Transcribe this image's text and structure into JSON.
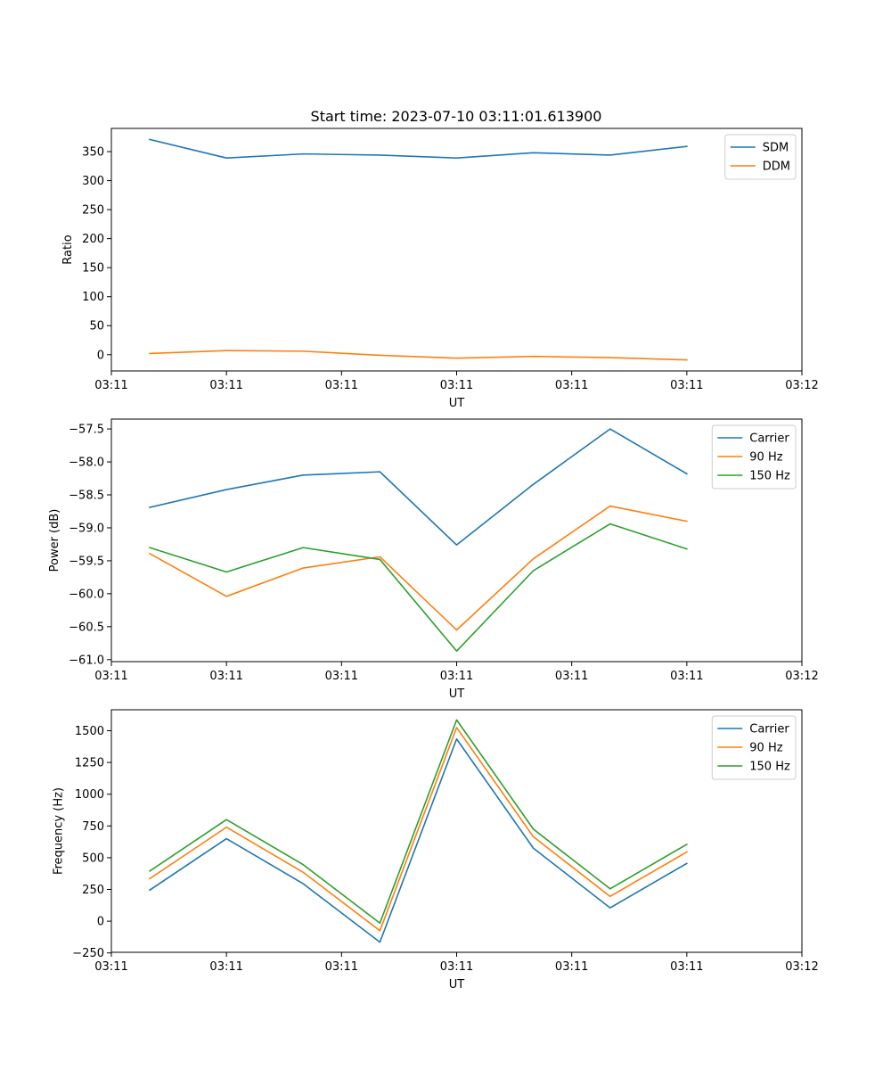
{
  "figure_title": "Start time: 2023-07-10 03:11:01.613900",
  "colors": {
    "blue": "#1f77b4",
    "orange": "#ff7f0e",
    "green": "#2ca02c"
  },
  "chart_data": [
    {
      "type": "line",
      "title": "Start time: 2023-07-10 03:11:01.613900",
      "xlabel": "UT",
      "ylabel": "Ratio",
      "xlim": [
        0,
        9
      ],
      "ylim": [
        -28,
        390
      ],
      "x": [
        0.5,
        1.5,
        2.5,
        3.5,
        4.5,
        5.5,
        6.5,
        7.5
      ],
      "xticks": [
        0,
        1.5,
        3,
        4.5,
        6,
        7.5,
        9
      ],
      "xtick_labels": [
        "03:11",
        "03:11",
        "03:11",
        "03:11",
        "03:11",
        "03:11",
        "03:12"
      ],
      "yticks": [
        0,
        50,
        100,
        150,
        200,
        250,
        300,
        350
      ],
      "ytick_labels": [
        "0",
        "50",
        "100",
        "150",
        "200",
        "250",
        "300",
        "350"
      ],
      "legend_position": "top-right",
      "series": [
        {
          "name": "SDM",
          "color": "#1f77b4",
          "values": [
            371,
            339,
            346,
            344,
            339,
            348,
            344,
            359
          ]
        },
        {
          "name": "DDM",
          "color": "#ff7f0e",
          "values": [
            2,
            7,
            6,
            -1,
            -6,
            -3,
            -5,
            -9
          ]
        }
      ]
    },
    {
      "type": "line",
      "xlabel": "UT",
      "ylabel": "Power (dB)",
      "xlim": [
        0,
        9
      ],
      "ylim": [
        -61.03,
        -57.35
      ],
      "x": [
        0.5,
        1.5,
        2.5,
        3.5,
        4.5,
        5.5,
        6.5,
        7.5
      ],
      "xticks": [
        0,
        1.5,
        3,
        4.5,
        6,
        7.5,
        9
      ],
      "xtick_labels": [
        "03:11",
        "03:11",
        "03:11",
        "03:11",
        "03:11",
        "03:11",
        "03:12"
      ],
      "yticks": [
        -61.0,
        -60.5,
        -60.0,
        -59.5,
        -59.0,
        -58.5,
        -58.0,
        -57.5
      ],
      "ytick_labels": [
        "−61.0",
        "−60.5",
        "−60.0",
        "−59.5",
        "−59.0",
        "−58.5",
        "−58.0",
        "−57.5"
      ],
      "legend_position": "top-right",
      "series": [
        {
          "name": "Carrier",
          "color": "#1f77b4",
          "values": [
            -58.69,
            -58.42,
            -58.2,
            -58.15,
            -59.26,
            -58.34,
            -57.5,
            -58.18
          ]
        },
        {
          "name": "90 Hz",
          "color": "#ff7f0e",
          "values": [
            -59.39,
            -60.04,
            -59.61,
            -59.44,
            -60.55,
            -59.47,
            -58.67,
            -58.9
          ]
        },
        {
          "name": "150 Hz",
          "color": "#2ca02c",
          "values": [
            -59.3,
            -59.67,
            -59.3,
            -59.48,
            -60.87,
            -59.65,
            -58.94,
            -59.32
          ]
        }
      ]
    },
    {
      "type": "line",
      "xlabel": "UT",
      "ylabel": "Frequency (Hz)",
      "xlim": [
        0,
        9
      ],
      "ylim": [
        -245,
        1665
      ],
      "x": [
        0.5,
        1.5,
        2.5,
        3.5,
        4.5,
        5.5,
        6.5,
        7.5
      ],
      "xticks": [
        0,
        1.5,
        3,
        4.5,
        6,
        7.5,
        9
      ],
      "xtick_labels": [
        "03:11",
        "03:11",
        "03:11",
        "03:11",
        "03:11",
        "03:11",
        "03:12"
      ],
      "yticks": [
        -250,
        0,
        250,
        500,
        750,
        1000,
        1250,
        1500
      ],
      "ytick_labels": [
        "−250",
        "0",
        "250",
        "500",
        "750",
        "1000",
        "1250",
        "1500"
      ],
      "legend_position": "top-right",
      "series": [
        {
          "name": "Carrier",
          "color": "#1f77b4",
          "values": [
            245,
            650,
            295,
            -165,
            1435,
            575,
            105,
            455
          ]
        },
        {
          "name": "90 Hz",
          "color": "#ff7f0e",
          "values": [
            335,
            740,
            385,
            -75,
            1525,
            665,
            195,
            545
          ]
        },
        {
          "name": "150 Hz",
          "color": "#2ca02c",
          "values": [
            395,
            800,
            445,
            -15,
            1585,
            725,
            255,
            605
          ]
        }
      ]
    }
  ]
}
